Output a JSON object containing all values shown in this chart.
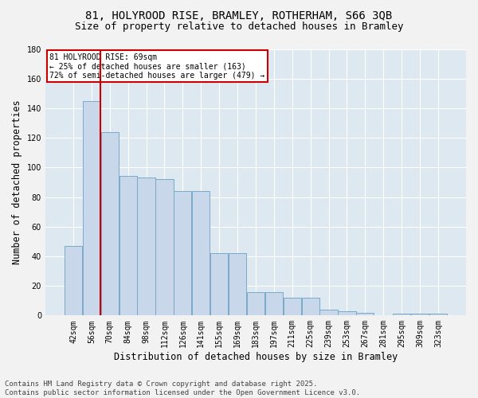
{
  "title_line1": "81, HOLYROOD RISE, BRAMLEY, ROTHERHAM, S66 3QB",
  "title_line2": "Size of property relative to detached houses in Bramley",
  "xlabel": "Distribution of detached houses by size in Bramley",
  "ylabel": "Number of detached properties",
  "bins": [
    "42sqm",
    "56sqm",
    "70sqm",
    "84sqm",
    "98sqm",
    "112sqm",
    "126sqm",
    "141sqm",
    "155sqm",
    "169sqm",
    "183sqm",
    "197sqm",
    "211sqm",
    "225sqm",
    "239sqm",
    "253sqm",
    "267sqm",
    "281sqm",
    "295sqm",
    "309sqm",
    "323sqm"
  ],
  "values": [
    47,
    145,
    124,
    94,
    93,
    92,
    84,
    84,
    42,
    42,
    16,
    16,
    12,
    12,
    4,
    3,
    2,
    0,
    1,
    1,
    1
  ],
  "bar_color": "#c8d8ea",
  "bar_edge_color": "#7aaac8",
  "annotation_text": "81 HOLYROOD RISE: 69sqm\n← 25% of detached houses are smaller (163)\n72% of semi-detached houses are larger (479) →",
  "annotation_box_facecolor": "#ffffff",
  "annotation_box_edgecolor": "#cc0000",
  "red_line_bin_index": 2,
  "ylim": [
    0,
    180
  ],
  "yticks": [
    0,
    20,
    40,
    60,
    80,
    100,
    120,
    140,
    160,
    180
  ],
  "plot_bg_color": "#dde8f0",
  "fig_bg_color": "#f2f2f2",
  "grid_color": "#ffffff",
  "title_fontsize": 10,
  "subtitle_fontsize": 9,
  "axis_label_fontsize": 8.5,
  "tick_fontsize": 7,
  "annotation_fontsize": 7,
  "footer_fontsize": 6.5,
  "footer_line1": "Contains HM Land Registry data © Crown copyright and database right 2025.",
  "footer_line2": "Contains public sector information licensed under the Open Government Licence v3.0."
}
